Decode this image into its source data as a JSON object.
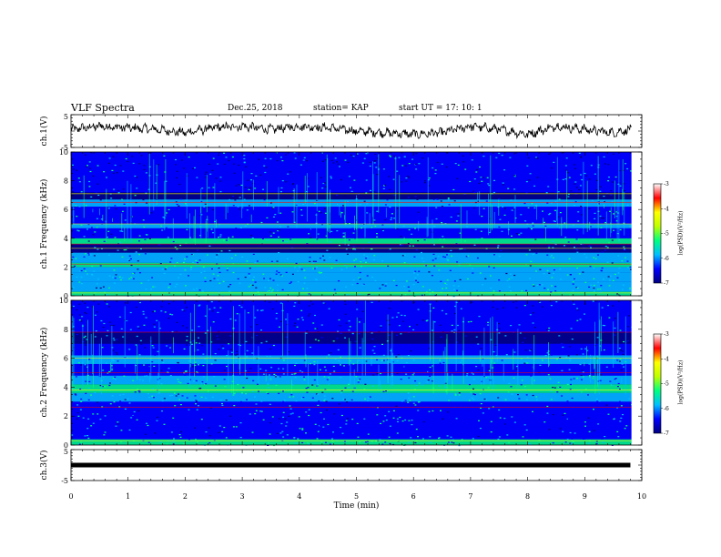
{
  "header": {
    "title": "VLF Spectra",
    "date": "Dec.25, 2018",
    "station": "station= KAP",
    "start": "start  UT =   17: 10: 1"
  },
  "colors": {
    "colormap": [
      "#00007f",
      "#0000ff",
      "#00bfff",
      "#00ff7f",
      "#bfff00",
      "#ffff00",
      "#ff0000",
      "#ffffff"
    ],
    "trace": "#000000"
  },
  "chart_data": [
    {
      "type": "line",
      "ylabel": "ch.1(V)",
      "ylim": [
        -5,
        5
      ],
      "yticks": [
        "5",
        "-5"
      ],
      "xlim": [
        0,
        10
      ],
      "approx_series": {
        "x": [
          0,
          0.5,
          1,
          1.5,
          2,
          2.5,
          3,
          3.5,
          4,
          4.5,
          5,
          5.5,
          6,
          6.5,
          7,
          7.5,
          8,
          8.5,
          9,
          9.5,
          9.8
        ],
        "y": [
          0.5,
          1.5,
          1.0,
          0.5,
          -0.5,
          1.0,
          1.5,
          0.5,
          1.5,
          1.0,
          0,
          -0.5,
          -1.0,
          -0.5,
          1.5,
          0.5,
          -1.0,
          1.5,
          0.5,
          -0.5,
          0.5
        ]
      }
    },
    {
      "type": "heatmap",
      "ylabel": "ch.1  Frequency  (kHz)",
      "ylim": [
        0,
        10
      ],
      "yticks": [
        "0",
        "2",
        "4",
        "6",
        "8",
        "10"
      ],
      "xlim": [
        0,
        10
      ],
      "colorbar": {
        "label": "log(PSD)(V²/Hz)",
        "range": [
          -7,
          -3
        ],
        "ticks": [
          "-3",
          "-4",
          "-5",
          "-6",
          "-7"
        ]
      }
    },
    {
      "type": "heatmap",
      "ylabel": "ch.2  Frequency  (kHz)",
      "ylim": [
        0,
        10
      ],
      "yticks": [
        "0",
        "2",
        "4",
        "6",
        "8",
        "10"
      ],
      "xlim": [
        0,
        10
      ],
      "colorbar": {
        "label": "log(PSD)(V²/Hz)",
        "range": [
          -7,
          -3
        ],
        "ticks": [
          "-3",
          "-4",
          "-5",
          "-6",
          "-7"
        ]
      }
    },
    {
      "type": "line",
      "ylabel": "ch.3(V)",
      "ylim": [
        -5,
        5
      ],
      "yticks": [
        "5",
        "-5"
      ],
      "xlim": [
        0,
        10
      ],
      "approx_series": {
        "x": [
          0,
          9.8
        ],
        "y": [
          0,
          0
        ]
      }
    }
  ],
  "xaxis": {
    "label": "Time  (min)",
    "ticks": [
      "0",
      "1",
      "2",
      "3",
      "4",
      "5",
      "6",
      "7",
      "8",
      "9",
      "10"
    ]
  }
}
